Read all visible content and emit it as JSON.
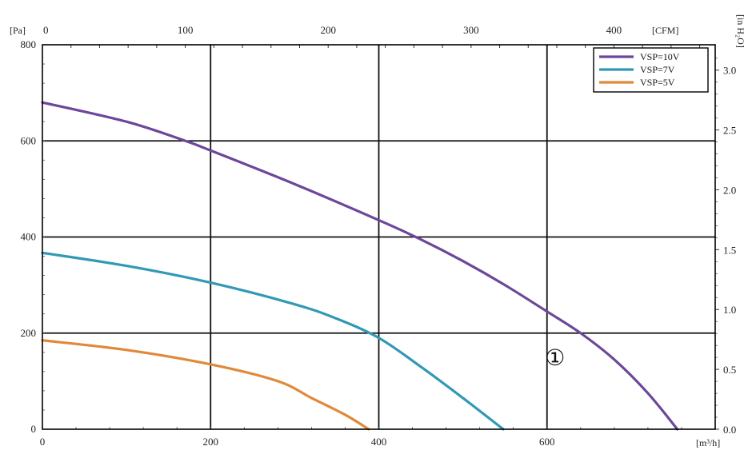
{
  "chart_data": {
    "type": "line",
    "x_axis": {
      "unit": "[m³/h]",
      "ticks": [
        "0",
        "200",
        "400",
        "600"
      ],
      "range": [
        0,
        800
      ]
    },
    "y_axis": {
      "unit": "[Pa]",
      "ticks": [
        "0",
        "200",
        "400",
        "600",
        "800"
      ],
      "range": [
        0,
        800
      ]
    },
    "top_axis": {
      "unit": "[CFM]",
      "ticks": [
        "0",
        "100",
        "200",
        "300",
        "400"
      ],
      "range": [
        0,
        470.9
      ]
    },
    "right_axis": {
      "unit": "[in H₂O]",
      "ticks": [
        "0.0",
        "0.5",
        "1.0",
        "1.5",
        "2.0",
        "2.5",
        "3.0"
      ],
      "range": [
        0,
        3.21
      ]
    },
    "grid": true,
    "legend_position": "top-right",
    "series": [
      {
        "name": "VSP=10V",
        "color": "#6c479a",
        "x": [
          0,
          100,
          170,
          200,
          300,
          400,
          450,
          500,
          550,
          600,
          640,
          680,
          720,
          755
        ],
        "y": [
          680,
          640,
          600,
          580,
          510,
          435,
          395,
          350,
          300,
          245,
          200,
          145,
          75,
          0
        ]
      },
      {
        "name": "VSP=7V",
        "color": "#3199b5",
        "x": [
          0,
          100,
          200,
          300,
          350,
          400,
          450,
          500,
          548
        ],
        "y": [
          367,
          340,
          305,
          260,
          230,
          190,
          130,
          65,
          0
        ]
      },
      {
        "name": "VSP=5V",
        "color": "#e0893a",
        "x": [
          0,
          100,
          200,
          280,
          320,
          360,
          388
        ],
        "y": [
          185,
          165,
          135,
          100,
          65,
          30,
          0
        ]
      }
    ],
    "annotations": [
      {
        "text": "①",
        "x": 600,
        "y": 150
      }
    ]
  }
}
